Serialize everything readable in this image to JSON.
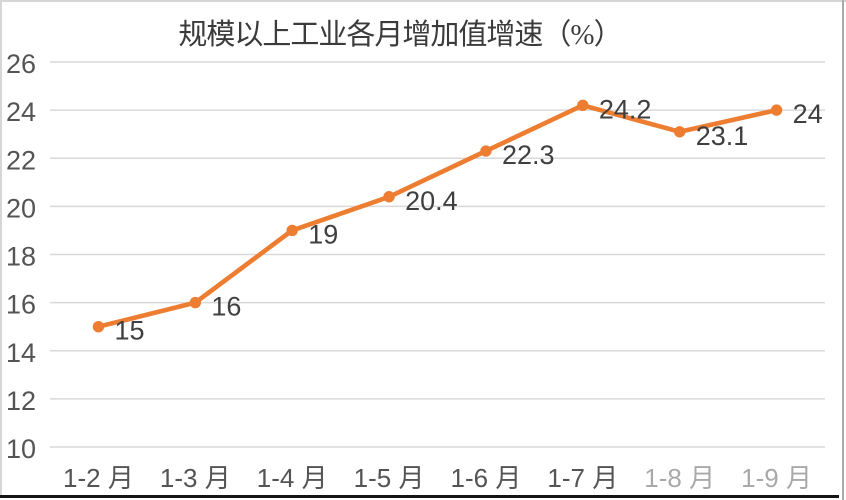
{
  "chart_data": {
    "type": "line",
    "title": "规模以上工业各月增加值增速（%）",
    "categories": [
      "1-2 月",
      "1-3 月",
      "1-4 月",
      "1-5 月",
      "1-6 月",
      "1-7 月",
      "1-8 月",
      "1-9 月"
    ],
    "values": [
      15,
      16,
      19,
      20.4,
      22.3,
      24.2,
      23.1,
      24
    ],
    "data_labels": [
      "15",
      "16",
      "19",
      "20.4",
      "22.3",
      "24.2",
      "23.1",
      "24"
    ],
    "xlabel": "",
    "ylabel": "",
    "ylim": [
      10,
      26
    ],
    "ytick_step": 2,
    "yticks": [
      "10",
      "12",
      "14",
      "16",
      "18",
      "20",
      "22",
      "24",
      "26"
    ],
    "grid": "horizontal",
    "legend": "none",
    "marker": "circle",
    "faded_category_indices": [
      6,
      7
    ],
    "faded_opacity": 0.5,
    "line_color": "#ED7D31",
    "colors": {
      "gridline": "#d9d9d9",
      "axis_label": "#545454",
      "data_label": "#3f3f3f",
      "title": "#3b3b3b"
    }
  }
}
